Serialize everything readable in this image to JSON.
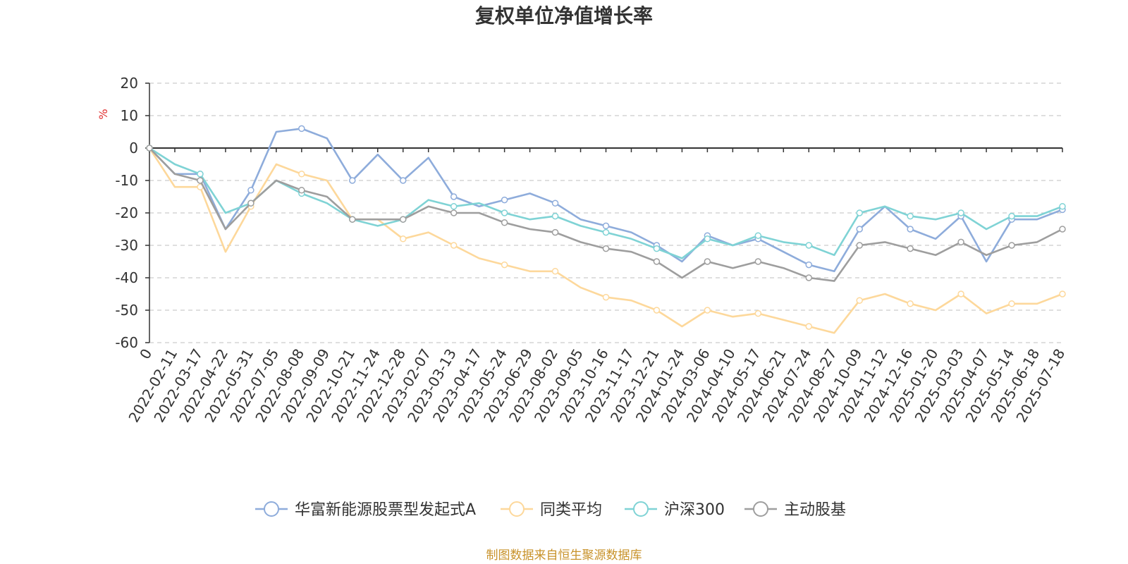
{
  "chart_data": {
    "type": "line",
    "title": "复权单位净值增长率",
    "ylabel": "%",
    "ylim": [
      -60,
      20
    ],
    "yticks": [
      20,
      10,
      0,
      -10,
      -20,
      -30,
      -40,
      -50,
      -60
    ],
    "grid": true,
    "legend_position": "bottom",
    "x_tick_labels": [
      "0",
      "2022-02-11",
      "2022-03-17",
      "2022-04-22",
      "2022-05-31",
      "2022-07-05",
      "2022-08-08",
      "2022-09-09",
      "2022-10-21",
      "2022-11-24",
      "2022-12-28",
      "2023-02-07",
      "2023-03-13",
      "2023-04-17",
      "2023-05-24",
      "2023-06-29",
      "2023-08-02",
      "2023-09-05",
      "2023-10-16",
      "2023-11-17",
      "2023-12-21",
      "2024-01-24",
      "2024-03-06",
      "2024-04-10",
      "2024-05-17",
      "2024-06-21",
      "2024-07-24",
      "2024-08-27",
      "2024-10-09",
      "2024-11-12",
      "2024-12-16",
      "2025-01-20",
      "2025-03-03",
      "2025-04-07",
      "2025-05-14",
      "2025-06-18",
      "2025-07-18"
    ],
    "series": [
      {
        "name": "华富新能源股票型发起式A",
        "color": "#8eacdb",
        "values": [
          0,
          -8,
          -8,
          -25,
          -13,
          5,
          6,
          3,
          -10,
          -2,
          -10,
          -3,
          -15,
          -18,
          -16,
          -14,
          -17,
          -22,
          -24,
          -26,
          -30,
          -35,
          -27,
          -30,
          -28,
          -32,
          -36,
          -38,
          -25,
          -18,
          -25,
          -28,
          -21,
          -35,
          -22,
          -22,
          -19
        ]
      },
      {
        "name": "同类平均",
        "color": "#fdd89b",
        "values": [
          0,
          -12,
          -12,
          -32,
          -18,
          -5,
          -8,
          -10,
          -22,
          -22,
          -28,
          -26,
          -30,
          -34,
          -36,
          -38,
          -38,
          -43,
          -46,
          -47,
          -50,
          -55,
          -50,
          -52,
          -51,
          -53,
          -55,
          -57,
          -47,
          -45,
          -48,
          -50,
          -45,
          -51,
          -48,
          -48,
          -45
        ]
      },
      {
        "name": "沪深300",
        "color": "#7fd3d5",
        "values": [
          0,
          -5,
          -8,
          -20,
          -17,
          -10,
          -14,
          -17,
          -22,
          -24,
          -22,
          -16,
          -18,
          -17,
          -20,
          -22,
          -21,
          -24,
          -26,
          -28,
          -31,
          -34,
          -28,
          -30,
          -27,
          -29,
          -30,
          -33,
          -20,
          -18,
          -21,
          -22,
          -20,
          -25,
          -21,
          -21,
          -18
        ]
      },
      {
        "name": "主动股基",
        "color": "#9e9e9e",
        "values": [
          0,
          -8,
          -10,
          -25,
          -17,
          -10,
          -13,
          -15,
          -22,
          -22,
          -22,
          -18,
          -20,
          -20,
          -23,
          -25,
          -26,
          -29,
          -31,
          -32,
          -35,
          -40,
          -35,
          -37,
          -35,
          -37,
          -40,
          -41,
          -30,
          -29,
          -31,
          -33,
          -29,
          -33,
          -30,
          -29,
          -25
        ]
      }
    ]
  },
  "source_note": "制图数据来自恒生聚源数据库"
}
